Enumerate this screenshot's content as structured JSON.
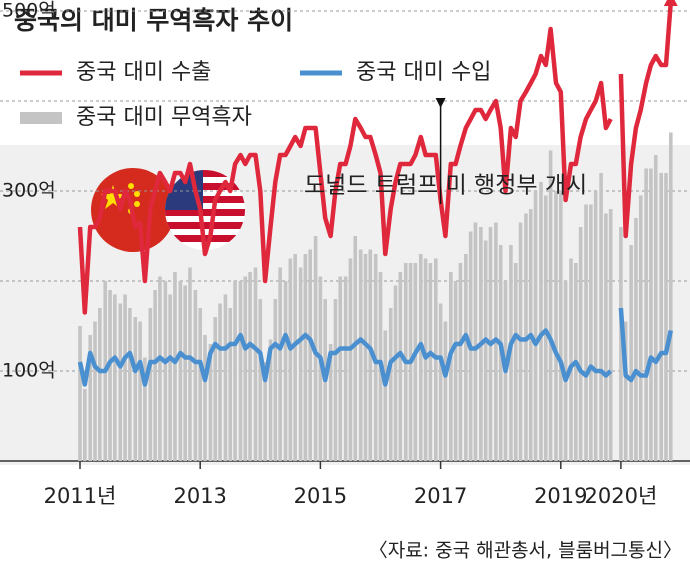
{
  "chart_data": {
    "type": "line",
    "title": "중국의 대미 무역흑자 추이",
    "x": [
      2011,
      2011.08,
      2011.17,
      2011.25,
      2011.33,
      2011.42,
      2011.5,
      2011.58,
      2011.67,
      2011.75,
      2011.83,
      2011.92,
      2012,
      2012.08,
      2012.17,
      2012.25,
      2012.33,
      2012.42,
      2012.5,
      2012.58,
      2012.67,
      2012.75,
      2012.83,
      2012.92,
      2013,
      2013.08,
      2013.17,
      2013.25,
      2013.33,
      2013.42,
      2013.5,
      2013.58,
      2013.67,
      2013.75,
      2013.83,
      2013.92,
      2014,
      2014.08,
      2014.17,
      2014.25,
      2014.33,
      2014.42,
      2014.5,
      2014.58,
      2014.67,
      2014.75,
      2014.83,
      2014.92,
      2015,
      2015.08,
      2015.17,
      2015.25,
      2015.33,
      2015.42,
      2015.5,
      2015.58,
      2015.67,
      2015.75,
      2015.83,
      2015.92,
      2016,
      2016.08,
      2016.17,
      2016.25,
      2016.33,
      2016.42,
      2016.5,
      2016.58,
      2016.67,
      2016.75,
      2016.83,
      2016.92,
      2017,
      2017.08,
      2017.17,
      2017.25,
      2017.33,
      2017.42,
      2017.5,
      2017.58,
      2017.67,
      2017.75,
      2017.83,
      2017.92,
      2018,
      2018.08,
      2018.17,
      2018.25,
      2018.33,
      2018.42,
      2018.5,
      2018.58,
      2018.67,
      2018.75,
      2018.83,
      2018.92,
      2019,
      2019.08,
      2019.17,
      2019.25,
      2019.33,
      2019.42,
      2019.5,
      2019.58,
      2019.67,
      2019.75,
      2019.83,
      2019.92,
      2020,
      2020.08,
      2020.17,
      2020.25,
      2020.33,
      2020.42,
      2020.5,
      2020.58,
      2020.67,
      2020.75,
      2020.83
    ],
    "series": [
      {
        "name": "중국 대미 수출",
        "color": "#e0283c",
        "kind": "line",
        "values": [
          260,
          165,
          260,
          260,
          270,
          300,
          300,
          300,
          280,
          300,
          290,
          260,
          265,
          200,
          280,
          300,
          320,
          310,
          300,
          320,
          320,
          310,
          330,
          300,
          280,
          230,
          250,
          290,
          300,
          310,
          300,
          330,
          340,
          330,
          340,
          340,
          300,
          200,
          260,
          310,
          340,
          340,
          350,
          360,
          350,
          370,
          370,
          370,
          320,
          270,
          250,
          300,
          330,
          330,
          350,
          380,
          370,
          360,
          360,
          340,
          320,
          230,
          280,
          310,
          330,
          330,
          330,
          340,
          360,
          340,
          340,
          340,
          290,
          250,
          330,
          330,
          350,
          370,
          380,
          390,
          390,
          380,
          390,
          400,
          370,
          300,
          370,
          360,
          400,
          410,
          420,
          430,
          450,
          440,
          480,
          420,
          410,
          290,
          330,
          330,
          360,
          380,
          390,
          400,
          420,
          370,
          380,
          null,
          430,
          250,
          330,
          370,
          390,
          420,
          440,
          450,
          440,
          440,
          510
        ]
      },
      {
        "name": "중국 대미 수입",
        "color": "#4a90d0",
        "kind": "line",
        "values": [
          110,
          85,
          120,
          105,
          100,
          100,
          110,
          115,
          105,
          115,
          120,
          100,
          110,
          85,
          110,
          110,
          115,
          110,
          115,
          110,
          120,
          115,
          115,
          110,
          110,
          90,
          120,
          130,
          125,
          125,
          130,
          130,
          140,
          125,
          130,
          125,
          120,
          90,
          125,
          130,
          125,
          140,
          125,
          130,
          135,
          140,
          135,
          120,
          115,
          90,
          120,
          120,
          125,
          125,
          125,
          130,
          135,
          130,
          125,
          110,
          110,
          85,
          110,
          115,
          120,
          110,
          110,
          120,
          130,
          115,
          120,
          115,
          115,
          95,
          120,
          130,
          130,
          140,
          125,
          125,
          130,
          135,
          130,
          135,
          130,
          100,
          130,
          140,
          135,
          135,
          140,
          130,
          140,
          145,
          135,
          120,
          110,
          90,
          105,
          110,
          100,
          95,
          105,
          100,
          100,
          95,
          100,
          null,
          170,
          95,
          90,
          100,
          95,
          95,
          115,
          110,
          120,
          120,
          145
        ]
      },
      {
        "name": "중국 대미 무역흑자",
        "color": "#c4c4c4",
        "kind": "bar",
        "values": [
          150,
          80,
          140,
          155,
          170,
          200,
          190,
          185,
          175,
          185,
          170,
          160,
          155,
          115,
          170,
          190,
          205,
          200,
          185,
          210,
          200,
          195,
          215,
          190,
          170,
          140,
          130,
          160,
          175,
          185,
          170,
          200,
          200,
          205,
          210,
          215,
          180,
          110,
          135,
          180,
          215,
          200,
          225,
          230,
          215,
          230,
          235,
          250,
          205,
          180,
          130,
          180,
          205,
          205,
          225,
          250,
          235,
          230,
          235,
          230,
          210,
          145,
          170,
          195,
          210,
          220,
          220,
          220,
          230,
          225,
          220,
          225,
          175,
          155,
          210,
          200,
          220,
          230,
          255,
          265,
          260,
          245,
          260,
          265,
          240,
          200,
          240,
          220,
          265,
          275,
          280,
          300,
          310,
          295,
          345,
          300,
          300,
          200,
          225,
          220,
          260,
          285,
          285,
          300,
          320,
          275,
          280,
          null,
          260,
          155,
          240,
          270,
          295,
          325,
          325,
          340,
          320,
          320,
          365
        ]
      }
    ],
    "xlim": [
      2011,
      2021
    ],
    "xticks": [
      {
        "value": 2011,
        "label": "2011년"
      },
      2013,
      2015,
      2017,
      2019,
      {
        "value": 2020,
        "label": "2020년"
      }
    ],
    "ylim": [
      0,
      500
    ],
    "yticks": [
      {
        "value": 100,
        "label": "100억"
      },
      {
        "value": 300,
        "label": "300억"
      },
      {
        "value": 500,
        "label": "500억"
      }
    ],
    "minor_yticks": [
      200,
      400
    ],
    "grid": true,
    "annotation": {
      "text": "도널드 트럼프 미 행정부 개시",
      "x": 2017,
      "y": 390
    },
    "source": "〈자료: 중국 해관총서, 블룸버그통신〉"
  }
}
